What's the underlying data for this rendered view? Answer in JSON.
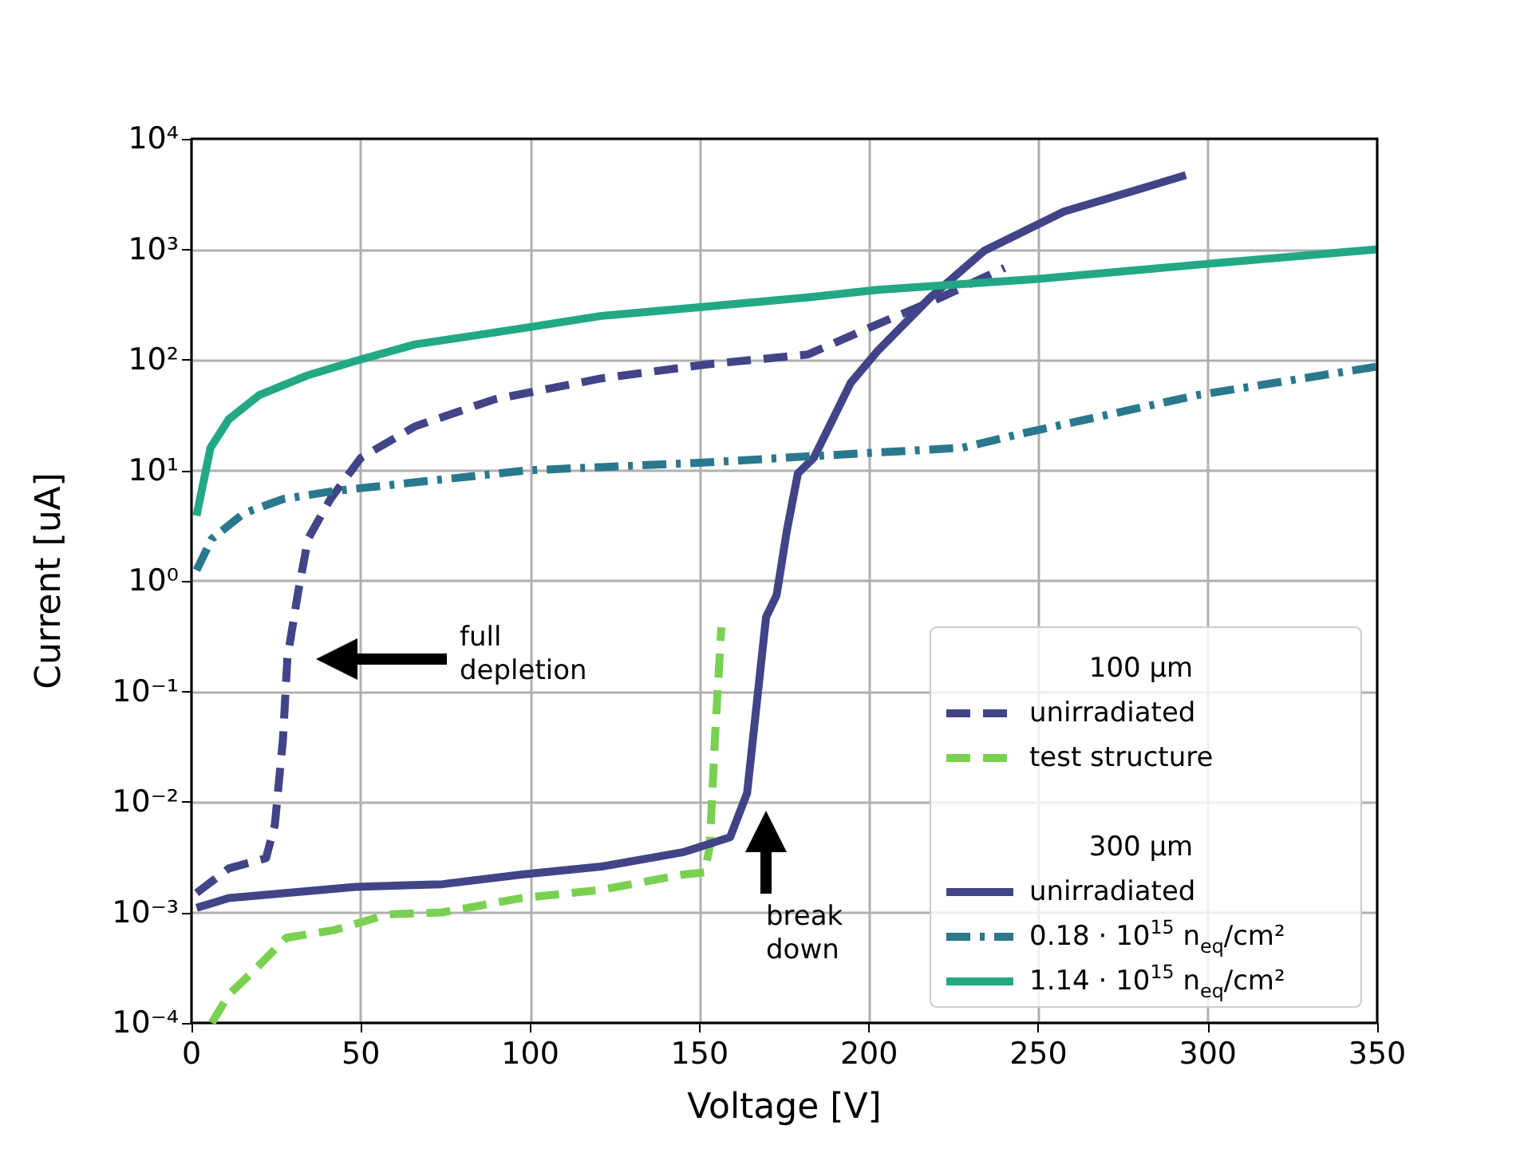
{
  "chart_data": {
    "type": "line",
    "xlabel": "Voltage [V]",
    "ylabel": "Current [uA]",
    "log": "y",
    "grid": true,
    "legend": "bottom right",
    "marker": "none",
    "xlim": [
      0,
      350
    ],
    "xticks": [
      0,
      50,
      100,
      150,
      200,
      250,
      300,
      350
    ],
    "ylim": [
      0.0001,
      10000
    ],
    "yticks": [
      {
        "value": 0.0001,
        "label": "10⁻⁴"
      },
      {
        "value": 0.001,
        "label": "10⁻³"
      },
      {
        "value": 0.01,
        "label": "10⁻²"
      },
      {
        "value": 0.1,
        "label": "10⁻¹"
      },
      {
        "value": 1,
        "label": "10⁰"
      },
      {
        "value": 10,
        "label": "10¹"
      },
      {
        "value": 100,
        "label": "10²"
      },
      {
        "value": 1000,
        "label": "10³"
      },
      {
        "value": 10000,
        "label": "10⁴"
      }
    ],
    "annotations": [
      "100 µm",
      "300 µm",
      "full\ndepletion",
      "break\ndown"
    ],
    "series": [
      {
        "name": "unirradiated",
        "color": "#414487",
        "line_style": "dashed",
        "x": [
          1.5,
          11,
          22,
          24.6,
          27,
          28.3,
          31.5,
          34.4,
          41,
          50,
          66,
          89.5,
          121,
          152,
          182,
          202.5,
          221,
          240
        ],
        "values": [
          0.0015,
          0.0025,
          0.0031,
          0.0062,
          0.037,
          0.2,
          0.8,
          2.4,
          5.5,
          13,
          25,
          44,
          68,
          91,
          112,
          210,
          365,
          680
        ]
      },
      {
        "name": "test structure",
        "color": "#7ad151",
        "line_style": "dashed",
        "x": [
          6,
          11,
          19,
          28,
          42,
          58,
          74,
          97.5,
          121,
          145,
          151.5,
          153,
          154.5,
          156.4
        ],
        "values": [
          0.0001,
          0.00018,
          0.00031,
          0.00059,
          0.00069,
          0.00096,
          0.001,
          0.00135,
          0.0016,
          0.0022,
          0.0023,
          0.004,
          0.037,
          0.38
        ]
      },
      {
        "name": "unirradiated",
        "color": "#414487",
        "line_style": "solid",
        "x": [
          1.5,
          11,
          48.5,
          74,
          97.5,
          121,
          145,
          159,
          164,
          169.6,
          172.7,
          175.7,
          179,
          183.7,
          194.6,
          202.5,
          218,
          234,
          257.6,
          281,
          293.5
        ],
        "values": [
          0.0011,
          0.00135,
          0.0017,
          0.0018,
          0.0022,
          0.0026,
          0.0035,
          0.0048,
          0.012,
          0.47,
          0.74,
          2.8,
          9.4,
          13,
          62,
          120,
          365,
          970,
          2200,
          3600,
          4700
        ]
      },
      {
        "name": "0.18 · 10$^{15}$ n$_{eq}$/cm²",
        "color": "#2a788e",
        "line_style": "dashdot",
        "x": [
          1.5,
          6,
          15.5,
          27,
          42,
          99,
          152,
          184,
          227.5,
          243.5,
          297,
          350
        ],
        "values": [
          1.25,
          2.4,
          4.1,
          5.5,
          6.5,
          10,
          11.8,
          13.5,
          16,
          21,
          48,
          87
        ]
      },
      {
        "name": "1.14 · 10$^{15}$ n$_{eq}$/cm²",
        "color": "#22a884",
        "line_style": "solid",
        "x": [
          1.5,
          5.6,
          11,
          20,
          34,
          48.5,
          66,
          83,
          100,
          121,
          150,
          183,
          202.5,
          250,
          300,
          350
        ],
        "values": [
          3.9,
          16,
          29,
          48,
          72,
          98,
          138,
          165,
          198,
          250,
          300,
          370,
          430,
          540,
          740,
          1000
        ]
      }
    ]
  }
}
